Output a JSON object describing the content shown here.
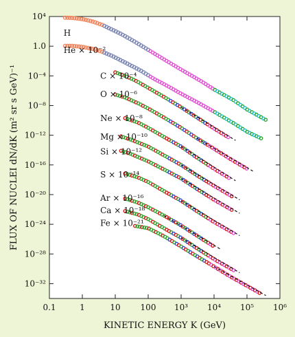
{
  "chart_data": {
    "type": "scatter",
    "title": "",
    "xlabel": "KINETIC ENERGY K (GeV)",
    "ylabel": "FLUX OF NUCLEI dN/dK (m² sr s GeV)⁻¹",
    "xscale": "log",
    "yscale": "log",
    "xlim": [
      0.1,
      1000000
    ],
    "ylim": [
      1e-34,
      10000
    ],
    "x_ticks": [
      "0.1",
      "1",
      "10",
      "100",
      "10³",
      "10⁴",
      "10⁵",
      "10⁶"
    ],
    "y_ticks": [
      "10⁴",
      "1.0",
      "10⁻⁴",
      "10⁻⁸",
      "10⁻¹²",
      "10⁻¹⁶",
      "10⁻²⁰",
      "10⁻²⁴",
      "10⁻²⁸",
      "10⁻³²"
    ],
    "grid": false,
    "colors": {
      "background": "#eef4d6",
      "plot_background": "#ffffff",
      "proton_helium": "#f0855e",
      "low_energy_dense": "#7b86b3",
      "magenta": "#e04fd2",
      "green": "#2ea62e",
      "red": "#d21e1e",
      "blue": "#3344d0",
      "cyan": "#22c3d0",
      "black": "#111111"
    },
    "series": [
      {
        "name": "H",
        "label_pos": [
          0.27,
          25
        ],
        "points": [
          [
            0.3,
            7000
          ],
          [
            0.5,
            6500
          ],
          [
            1,
            4500
          ],
          [
            2,
            2200
          ],
          [
            4,
            750
          ],
          [
            8,
            170
          ],
          [
            15,
            45
          ],
          [
            30,
            8
          ],
          [
            60,
            1.3
          ],
          [
            150,
            0.11
          ],
          [
            400,
            0.008
          ],
          [
            1000,
            0.0007
          ],
          [
            4000,
            2e-05
          ],
          [
            10000,
            1.5e-06
          ],
          [
            40000,
            5e-08
          ],
          [
            100000,
            3e-09
          ],
          [
            400000,
            1e-10
          ]
        ]
      },
      {
        "name": "He × 10⁻²",
        "label_pos": [
          0.27,
          0.12
        ],
        "points": [
          [
            0.3,
            1.1
          ],
          [
            0.5,
            1.1
          ],
          [
            1,
            0.8
          ],
          [
            2,
            0.45
          ],
          [
            4,
            0.18
          ],
          [
            8,
            0.05
          ],
          [
            15,
            0.012
          ],
          [
            30,
            0.0025
          ],
          [
            60,
            0.0005
          ],
          [
            150,
            4e-05
          ],
          [
            400,
            4e-06
          ],
          [
            1000,
            4e-07
          ],
          [
            4000,
            1.5e-08
          ],
          [
            10000,
            1.5e-09
          ],
          [
            40000,
            4e-11
          ],
          [
            100000,
            3e-12
          ],
          [
            300000,
            3e-13
          ]
        ]
      },
      {
        "name": "C × 10⁻⁴",
        "label_pos": [
          3.5,
          4e-05
        ],
        "points": [
          [
            10,
            0.0003
          ],
          [
            20,
            0.0001
          ],
          [
            40,
            2.5e-05
          ],
          [
            100,
            2.5e-06
          ],
          [
            300,
            1.5e-07
          ],
          [
            1000,
            6e-09
          ],
          [
            3000,
            2.5e-10
          ],
          [
            10000,
            8e-12
          ],
          [
            30000,
            4e-13
          ]
        ]
      },
      {
        "name": "O × 10⁻⁶",
        "label_pos": [
          3.5,
          1.5e-07
        ],
        "points": [
          [
            10,
            3e-07
          ],
          [
            20,
            1.2e-07
          ],
          [
            50,
            2e-08
          ],
          [
            100,
            4e-09
          ],
          [
            300,
            2.5e-10
          ],
          [
            1000,
            1e-11
          ],
          [
            3000,
            4e-13
          ],
          [
            10000,
            1.5e-14
          ],
          [
            30000,
            7e-16
          ],
          [
            100000,
            3e-17
          ]
        ]
      },
      {
        "name": "Ne × 10⁻⁸",
        "label_pos": [
          3.5,
          8e-11
        ],
        "points": [
          [
            20,
            2e-10
          ],
          [
            50,
            5e-11
          ],
          [
            100,
            1e-11
          ],
          [
            300,
            6e-13
          ],
          [
            1000,
            3e-14
          ],
          [
            3000,
            1e-15
          ],
          [
            10000,
            3e-17
          ],
          [
            30000,
            1.5e-18
          ]
        ]
      },
      {
        "name": "Mg × 10⁻¹⁰",
        "label_pos": [
          3.5,
          2.5e-13
        ],
        "points": [
          [
            15,
            7e-13
          ],
          [
            30,
            2.5e-13
          ],
          [
            100,
            3e-14
          ],
          [
            300,
            2e-15
          ],
          [
            1000,
            1e-16
          ],
          [
            3000,
            4e-18
          ],
          [
            10000,
            1.5e-19
          ],
          [
            40000,
            4e-21
          ]
        ]
      },
      {
        "name": "Si × 10⁻¹²",
        "label_pos": [
          3.5,
          2.5e-15
        ],
        "points": [
          [
            15,
            8e-15
          ],
          [
            30,
            3e-15
          ],
          [
            100,
            3e-16
          ],
          [
            300,
            2.5e-17
          ],
          [
            1000,
            1.5e-18
          ],
          [
            3000,
            6e-20
          ],
          [
            10000,
            2e-21
          ],
          [
            40000,
            6e-23
          ]
        ]
      },
      {
        "name": "S × 10⁻¹⁴",
        "label_pos": [
          3.5,
          2e-18
        ],
        "points": [
          [
            20,
            7e-18
          ],
          [
            50,
            2e-18
          ],
          [
            100,
            5e-19
          ],
          [
            300,
            3e-20
          ],
          [
            1000,
            1.5e-21
          ],
          [
            3000,
            6e-23
          ],
          [
            10000,
            2e-24
          ],
          [
            40000,
            6e-26
          ]
        ]
      },
      {
        "name": "Ar × 10⁻¹⁶",
        "label_pos": [
          3.5,
          1.5e-21
        ],
        "points": [
          [
            20,
            3e-21
          ],
          [
            50,
            8e-22
          ],
          [
            100,
            2e-22
          ],
          [
            300,
            1.5e-23
          ],
          [
            1000,
            7e-25
          ],
          [
            3000,
            3e-26
          ],
          [
            10000,
            1e-27
          ]
        ]
      },
      {
        "name": "Ca × 10⁻¹⁸",
        "label_pos": [
          3.5,
          3e-23
        ],
        "points": [
          [
            20,
            6e-23
          ],
          [
            50,
            2e-23
          ],
          [
            100,
            5e-24
          ],
          [
            300,
            3e-25
          ],
          [
            1000,
            1.5e-26
          ],
          [
            3000,
            6e-28
          ],
          [
            10000,
            2e-29
          ],
          [
            40000,
            6e-31
          ]
        ]
      },
      {
        "name": "Fe × 10⁻²¹",
        "label_pos": [
          3.5,
          6e-25
        ],
        "points": [
          [
            40,
            6e-25
          ],
          [
            100,
            3e-25
          ],
          [
            300,
            2.5e-26
          ],
          [
            1000,
            1e-27
          ],
          [
            3000,
            5e-29
          ],
          [
            10000,
            2e-30
          ],
          [
            30000,
            1e-31
          ],
          [
            100000,
            5e-33
          ],
          [
            250000,
            5e-34
          ]
        ]
      }
    ]
  }
}
